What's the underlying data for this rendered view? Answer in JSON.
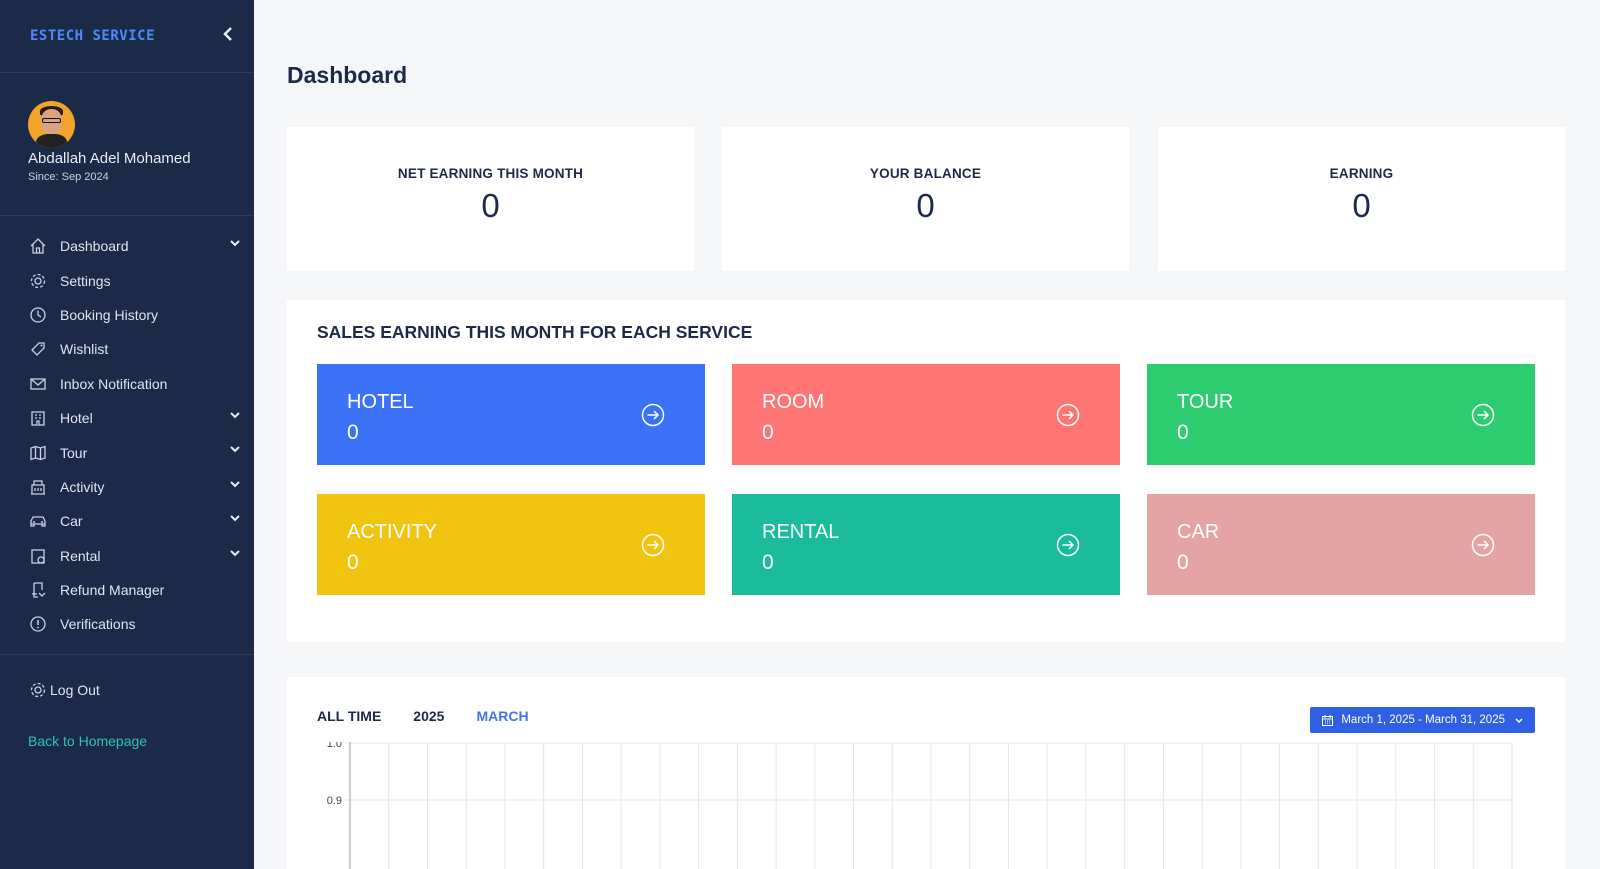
{
  "brand": {
    "logo_text": "ESTECH SERVICE"
  },
  "profile": {
    "name": "Abdallah Adel Mohamed",
    "since": "Since: Sep 2024"
  },
  "nav": [
    {
      "label": "Dashboard",
      "icon": "home-icon",
      "has_submenu": true
    },
    {
      "label": "Settings",
      "icon": "gear-icon",
      "has_submenu": false
    },
    {
      "label": "Booking History",
      "icon": "clock-icon",
      "has_submenu": false
    },
    {
      "label": "Wishlist",
      "icon": "heart-tag-icon",
      "has_submenu": false
    },
    {
      "label": "Inbox Notification",
      "icon": "mail-icon",
      "has_submenu": false
    },
    {
      "label": "Hotel",
      "icon": "hotel-icon",
      "has_submenu": true
    },
    {
      "label": "Tour",
      "icon": "map-icon",
      "has_submenu": true
    },
    {
      "label": "Activity",
      "icon": "building-icon",
      "has_submenu": true
    },
    {
      "label": "Car",
      "icon": "car-icon",
      "has_submenu": true
    },
    {
      "label": "Rental",
      "icon": "rental-icon",
      "has_submenu": true
    },
    {
      "label": "Refund Manager",
      "icon": "refund-icon",
      "has_submenu": false
    },
    {
      "label": "Verifications",
      "icon": "info-icon",
      "has_submenu": false
    }
  ],
  "footer_nav": {
    "logout": "Log Out",
    "back_home": "Back to Homepage"
  },
  "page": {
    "title": "Dashboard"
  },
  "stats": [
    {
      "label": "NET EARNING THIS MONTH",
      "value": "0"
    },
    {
      "label": "YOUR BALANCE",
      "value": "0"
    },
    {
      "label": "EARNING",
      "value": "0"
    }
  ],
  "sales": {
    "title": "SALES EARNING THIS MONTH FOR EACH SERVICE",
    "services": [
      {
        "name": "HOTEL",
        "value": "0",
        "color": "#3c72f8"
      },
      {
        "name": "ROOM",
        "value": "0",
        "color": "#fe7574"
      },
      {
        "name": "TOUR",
        "value": "0",
        "color": "#2ecc71"
      },
      {
        "name": "ACTIVITY",
        "value": "0",
        "color": "#f1c40f"
      },
      {
        "name": "RENTAL",
        "value": "0",
        "color": "#1abc9c"
      },
      {
        "name": "CAR",
        "value": "0",
        "color": "#e5a4a4"
      }
    ]
  },
  "chart": {
    "tabs": [
      {
        "label": "ALL TIME",
        "active": false
      },
      {
        "label": "2025",
        "active": false
      },
      {
        "label": "MARCH",
        "active": true
      }
    ],
    "date_range": "March 1, 2025 - March 31, 2025"
  },
  "chart_data": {
    "type": "line",
    "y_ticks_visible": [
      "1.0",
      "0.9"
    ],
    "grid": true,
    "series": []
  },
  "colors": {
    "sidebar_bg": "#1b2a47",
    "accent": "#3d73f5",
    "link": "#2ec4b6"
  }
}
